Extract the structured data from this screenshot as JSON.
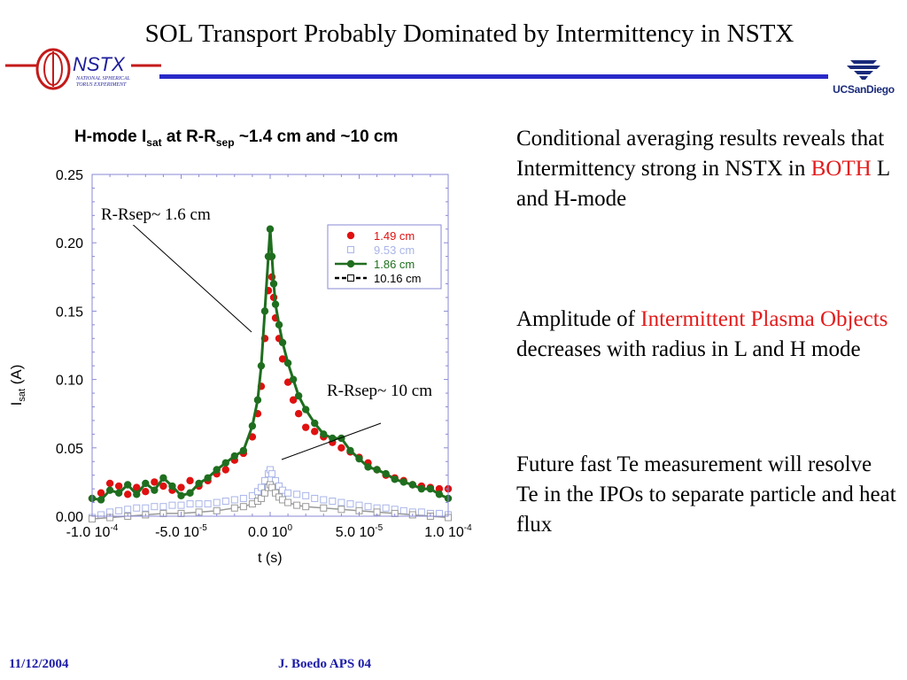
{
  "slide": {
    "title": "SOL Transport Probably Dominated by Intermittency in NSTX",
    "nstx_logo_text": "NSTX",
    "nstx_logo_sub1": "NATIONAL SPHERICAL",
    "nstx_logo_sub2": "TORUS EXPERIMENT",
    "ucsd_logo_text": "UCSanDiego",
    "bullets": {
      "b1_part1": "Conditional averaging results reveals that Intermittency strong in NSTX in ",
      "b1_red": "BOTH",
      "b1_part2": " L and H-mode",
      "b2_part1": "Amplitude of ",
      "b2_red": "Intermittent Plasma Objects",
      "b2_part2": " decreases with radius in L and H mode",
      "b3": "Future fast Te measurement will resolve Te in the IPOs to separate particle and heat flux"
    },
    "annotations": {
      "a1": "R-Rsep~ 1.6 cm",
      "a2": "R-Rsep~ 10 cm"
    },
    "footer": {
      "date": "11/12/2004",
      "author": "J. Boedo APS 04"
    }
  },
  "colors": {
    "red_series": "#e01010",
    "green_series": "#1f6e1f",
    "lightblue_series": "#a9b5e8",
    "gray_series": "#9a9a9a",
    "accent_bar": "#2929c8",
    "footer_blue": "#1c1ca8"
  },
  "chart_data": {
    "type": "scatter",
    "title_parts": {
      "a": "H-mode I",
      "sub1": "sat",
      "b": " at R-R",
      "sub2": "sep",
      "c": " ~1.4 cm and ~10 cm"
    },
    "xlabel": "t (s)",
    "ylabel_main": "I",
    "ylabel_sub": "sat",
    "ylabel_unit": " (A)",
    "xlim": [
      -0.0001,
      0.0001
    ],
    "ylim": [
      0.0,
      0.25
    ],
    "yticks": [
      {
        "v": 0.0,
        "label": "0.00"
      },
      {
        "v": 0.05,
        "label": "0.05"
      },
      {
        "v": 0.1,
        "label": "0.10"
      },
      {
        "v": 0.15,
        "label": "0.15"
      },
      {
        "v": 0.2,
        "label": "0.20"
      },
      {
        "v": 0.25,
        "label": "0.25"
      }
    ],
    "xticks": [
      {
        "v": -0.0001,
        "label": "-1.0 10",
        "exp": "-4"
      },
      {
        "v": -5e-05,
        "label": "-5.0 10",
        "exp": "-5"
      },
      {
        "v": 0.0,
        "label": "0.0 10",
        "exp": "0"
      },
      {
        "v": 5e-05,
        "label": "5.0 10",
        "exp": "-5"
      },
      {
        "v": 0.0001,
        "label": "1.0 10",
        "exp": "-4"
      }
    ],
    "legend_placement": "top-right",
    "series": [
      {
        "name": "1.49 cm",
        "marker": "filled-circle",
        "color": "#e01010",
        "line": false,
        "x_us": [
          -100,
          -95,
          -90,
          -85,
          -80,
          -75,
          -70,
          -65,
          -60,
          -55,
          -50,
          -45,
          -40,
          -35,
          -30,
          -25,
          -20,
          -15,
          -10,
          -7,
          -5,
          -3,
          -1,
          0,
          1,
          2,
          3,
          5,
          7,
          10,
          13,
          16,
          20,
          25,
          30,
          35,
          40,
          45,
          50,
          55,
          60,
          65,
          70,
          75,
          80,
          85,
          90,
          95,
          100
        ],
        "y": [
          0.013,
          0.017,
          0.024,
          0.022,
          0.016,
          0.021,
          0.018,
          0.025,
          0.022,
          0.019,
          0.021,
          0.026,
          0.022,
          0.026,
          0.031,
          0.034,
          0.041,
          0.046,
          0.058,
          0.075,
          0.095,
          0.13,
          0.165,
          0.19,
          0.175,
          0.16,
          0.145,
          0.13,
          0.115,
          0.098,
          0.085,
          0.075,
          0.065,
          0.062,
          0.058,
          0.054,
          0.05,
          0.047,
          0.043,
          0.039,
          0.034,
          0.03,
          0.028,
          0.026,
          0.023,
          0.022,
          0.021,
          0.02,
          0.02
        ]
      },
      {
        "name": "9.53 cm",
        "marker": "open-square",
        "color": "#a9b5e8",
        "line": false,
        "x_us": [
          -100,
          -95,
          -90,
          -85,
          -80,
          -75,
          -70,
          -65,
          -60,
          -55,
          -50,
          -45,
          -40,
          -35,
          -30,
          -25,
          -20,
          -15,
          -10,
          -7,
          -5,
          -3,
          -1,
          0,
          1,
          3,
          5,
          7,
          10,
          15,
          20,
          25,
          30,
          35,
          40,
          45,
          50,
          55,
          60,
          65,
          70,
          75,
          80,
          85,
          90,
          95,
          100
        ],
        "y": [
          -0.001,
          0.001,
          0.003,
          0.004,
          0.005,
          0.006,
          0.006,
          0.007,
          0.007,
          0.008,
          0.008,
          0.009,
          0.009,
          0.009,
          0.01,
          0.011,
          0.012,
          0.013,
          0.015,
          0.018,
          0.021,
          0.026,
          0.031,
          0.034,
          0.031,
          0.026,
          0.022,
          0.019,
          0.017,
          0.016,
          0.015,
          0.013,
          0.012,
          0.011,
          0.01,
          0.009,
          0.008,
          0.007,
          0.006,
          0.006,
          0.005,
          0.004,
          0.003,
          0.003,
          0.002,
          0.002,
          0.001
        ]
      },
      {
        "name": "1.86 cm",
        "marker": "filled-circle",
        "color": "#1f6e1f",
        "line": true,
        "x_us": [
          -100,
          -95,
          -90,
          -85,
          -80,
          -75,
          -70,
          -65,
          -60,
          -55,
          -50,
          -45,
          -40,
          -35,
          -30,
          -25,
          -20,
          -15,
          -10,
          -7,
          -5,
          -3,
          -1,
          0,
          1,
          2,
          3,
          5,
          7,
          10,
          13,
          16,
          20,
          25,
          30,
          35,
          40,
          45,
          50,
          55,
          60,
          65,
          70,
          75,
          80,
          85,
          90,
          95,
          100
        ],
        "y": [
          0.013,
          0.012,
          0.019,
          0.017,
          0.023,
          0.016,
          0.024,
          0.019,
          0.028,
          0.022,
          0.015,
          0.017,
          0.024,
          0.028,
          0.034,
          0.039,
          0.044,
          0.048,
          0.066,
          0.085,
          0.11,
          0.15,
          0.19,
          0.21,
          0.19,
          0.17,
          0.155,
          0.14,
          0.127,
          0.112,
          0.1,
          0.088,
          0.078,
          0.068,
          0.06,
          0.057,
          0.057,
          0.048,
          0.042,
          0.036,
          0.034,
          0.031,
          0.027,
          0.025,
          0.023,
          0.02,
          0.02,
          0.016,
          0.013
        ]
      },
      {
        "name": "10.16 cm",
        "marker": "open-square",
        "color": "#9a9a9a",
        "line": true,
        "dashed_legend": true,
        "x_us": [
          -100,
          -90,
          -80,
          -70,
          -60,
          -50,
          -40,
          -30,
          -20,
          -15,
          -10,
          -7,
          -5,
          -3,
          -1,
          0,
          1,
          3,
          5,
          7,
          10,
          15,
          20,
          30,
          40,
          50,
          60,
          70,
          80,
          90,
          100
        ],
        "y": [
          -0.002,
          -0.001,
          0.0,
          0.001,
          0.002,
          0.002,
          0.003,
          0.004,
          0.006,
          0.007,
          0.009,
          0.011,
          0.013,
          0.017,
          0.021,
          0.023,
          0.021,
          0.017,
          0.014,
          0.012,
          0.01,
          0.008,
          0.007,
          0.006,
          0.005,
          0.004,
          0.003,
          0.002,
          0.001,
          0.0,
          -0.001
        ]
      }
    ]
  }
}
